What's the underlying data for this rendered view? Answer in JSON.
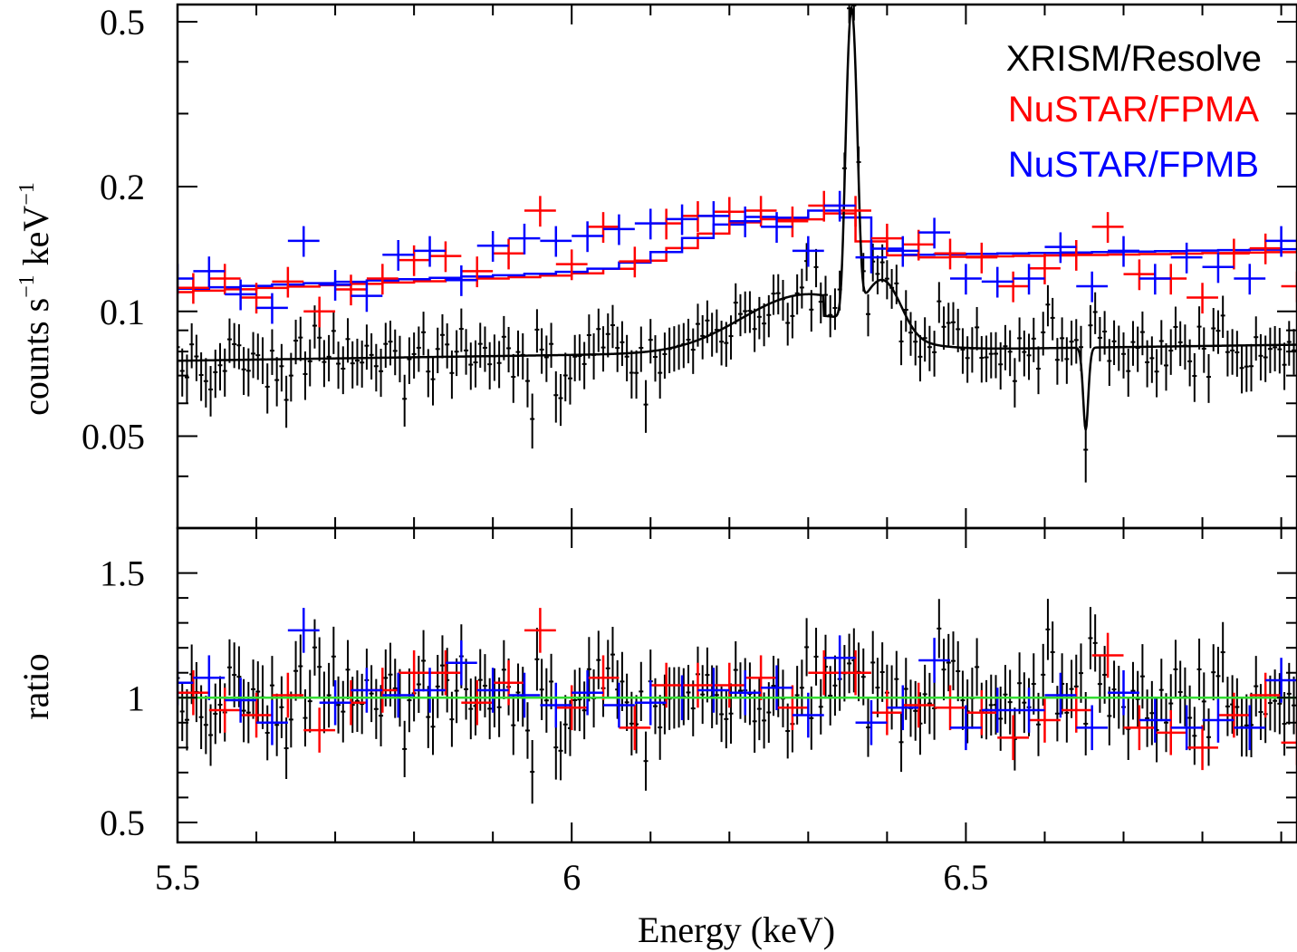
{
  "chart_data": {
    "type": "scatter",
    "panels": [
      {
        "id": "spectrum",
        "ylabel_parts": [
          "counts s",
          "−1",
          " keV",
          "−1"
        ],
        "yscale": "log",
        "ylim": [
          0.03,
          0.55
        ],
        "yticks": [
          {
            "value": 0.05,
            "label": "0.05"
          },
          {
            "value": 0.1,
            "label": "0.1"
          },
          {
            "value": 0.2,
            "label": "0.2"
          },
          {
            "value": 0.5,
            "label": "0.5"
          }
        ]
      },
      {
        "id": "ratio",
        "ylabel": "ratio",
        "yscale": "linear",
        "ylim": [
          0.42,
          1.68
        ],
        "yticks": [
          {
            "value": 0.5,
            "label": "0.5"
          },
          {
            "value": 1,
            "label": "1"
          },
          {
            "value": 1.5,
            "label": "1.5"
          }
        ],
        "reference_line": 1.0
      }
    ],
    "xlabel": "Energy (keV)",
    "xscale": "linear",
    "xlim": [
      5.5,
      6.92
    ],
    "xticks": [
      {
        "value": 5.5,
        "label": "5.5"
      },
      {
        "value": 6,
        "label": "6"
      },
      {
        "value": 6.5,
        "label": "6.5"
      }
    ],
    "legend": {
      "placement": "top-right",
      "entries": [
        {
          "name": "XRISM/Resolve",
          "color": "#000000"
        },
        {
          "name": "NuSTAR/FPMA",
          "color": "#ff0000"
        },
        {
          "name": "NuSTAR/FPMB",
          "color": "#0000ff"
        }
      ]
    },
    "series": [
      {
        "name": "NuSTAR/FPMA",
        "color": "#ff0000",
        "bin_width": 0.04,
        "x": [
          5.52,
          5.56,
          5.6,
          5.64,
          5.68,
          5.72,
          5.76,
          5.8,
          5.84,
          5.88,
          5.92,
          5.96,
          6.0,
          6.04,
          6.08,
          6.12,
          6.16,
          6.2,
          6.24,
          6.28,
          6.32,
          6.36,
          6.4,
          6.44,
          6.48,
          6.52,
          6.56,
          6.6,
          6.64,
          6.68,
          6.72,
          6.76,
          6.8,
          6.84,
          6.88,
          6.92
        ],
        "y": [
          0.114,
          0.12,
          0.108,
          0.118,
          0.1,
          0.113,
          0.12,
          0.133,
          0.136,
          0.125,
          0.138,
          0.175,
          0.13,
          0.16,
          0.132,
          0.163,
          0.17,
          0.174,
          0.175,
          0.165,
          0.18,
          0.175,
          0.15,
          0.145,
          0.138,
          0.135,
          0.115,
          0.127,
          0.137,
          0.16,
          0.123,
          0.12,
          0.108,
          0.138,
          0.142,
          0.115
        ],
        "ratio": [
          1.02,
          0.95,
          0.93,
          1.01,
          0.87,
          0.98,
          1.03,
          1.1,
          1.1,
          0.98,
          1.06,
          1.27,
          0.96,
          1.08,
          0.88,
          1.05,
          1.05,
          1.05,
          1.08,
          0.96,
          1.1,
          1.1,
          0.94,
          0.97,
          0.96,
          0.94,
          0.84,
          0.91,
          0.95,
          1.17,
          0.88,
          0.86,
          0.8,
          0.93,
          1.01,
          0.82
        ]
      },
      {
        "name": "NuSTAR/FPMB",
        "color": "#0000ff",
        "bin_width": 0.04,
        "x": [
          5.5,
          5.54,
          5.58,
          5.62,
          5.66,
          5.7,
          5.74,
          5.78,
          5.82,
          5.86,
          5.9,
          5.94,
          5.98,
          6.02,
          6.06,
          6.1,
          6.14,
          6.18,
          6.22,
          6.26,
          6.3,
          6.34,
          6.38,
          6.42,
          6.46,
          6.5,
          6.54,
          6.58,
          6.62,
          6.66,
          6.7,
          6.74,
          6.78,
          6.82,
          6.86,
          6.9
        ],
        "y": [
          0.12,
          0.125,
          0.11,
          0.102,
          0.148,
          0.116,
          0.109,
          0.137,
          0.14,
          0.119,
          0.144,
          0.15,
          0.148,
          0.152,
          0.158,
          0.163,
          0.167,
          0.17,
          0.165,
          0.16,
          0.14,
          0.18,
          0.135,
          0.14,
          0.155,
          0.12,
          0.118,
          0.12,
          0.143,
          0.115,
          0.14,
          0.12,
          0.135,
          0.128,
          0.12,
          0.148
        ],
        "ratio": [
          1.06,
          1.08,
          0.99,
          0.9,
          1.27,
          0.98,
          1.03,
          1.01,
          1.03,
          1.14,
          1.03,
          1.01,
          0.97,
          1.02,
          0.97,
          0.98,
          1.0,
          1.03,
          1.02,
          1.04,
          0.93,
          1.16,
          0.9,
          0.96,
          1.15,
          0.88,
          0.95,
          0.95,
          1.01,
          0.88,
          1.02,
          0.91,
          0.88,
          0.91,
          0.88,
          1.07
        ]
      }
    ]
  }
}
